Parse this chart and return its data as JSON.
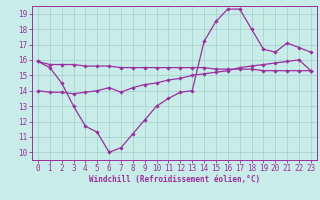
{
  "xlabel": "Windchill (Refroidissement éolien,°C)",
  "x": [
    0,
    1,
    2,
    3,
    4,
    5,
    6,
    7,
    8,
    9,
    10,
    11,
    12,
    13,
    14,
    15,
    16,
    17,
    18,
    19,
    20,
    21,
    22,
    23
  ],
  "line1": [
    15.9,
    15.7,
    15.7,
    15.7,
    15.6,
    15.6,
    15.6,
    15.5,
    15.5,
    15.5,
    15.5,
    15.5,
    15.5,
    15.5,
    15.5,
    15.4,
    15.4,
    15.4,
    15.4,
    15.3,
    15.3,
    15.3,
    15.3,
    15.3
  ],
  "line2": [
    14.0,
    13.9,
    13.9,
    13.8,
    13.9,
    14.0,
    14.2,
    13.9,
    14.2,
    14.4,
    14.5,
    14.7,
    14.8,
    15.0,
    15.1,
    15.2,
    15.3,
    15.5,
    15.6,
    15.7,
    15.8,
    15.9,
    16.0,
    15.3
  ],
  "line3": [
    15.9,
    15.5,
    14.5,
    13.0,
    11.7,
    11.3,
    10.0,
    10.3,
    11.2,
    12.1,
    13.0,
    13.5,
    13.9,
    14.0,
    17.2,
    18.5,
    19.3,
    19.3,
    18.0,
    16.7,
    16.5,
    17.1,
    16.8,
    16.5
  ],
  "color": "#9b30a0",
  "bg_color": "#c8ece8",
  "grid_color": "#a8d4d0",
  "xlim": [
    -0.5,
    23.5
  ],
  "ylim": [
    9.5,
    19.5
  ],
  "xticks": [
    0,
    1,
    2,
    3,
    4,
    5,
    6,
    7,
    8,
    9,
    10,
    11,
    12,
    13,
    14,
    15,
    16,
    17,
    18,
    19,
    20,
    21,
    22,
    23
  ],
  "yticks": [
    10,
    11,
    12,
    13,
    14,
    15,
    16,
    17,
    18,
    19
  ],
  "tick_fontsize": 5.5,
  "xlabel_fontsize": 5.5,
  "linewidth": 0.9,
  "markersize": 2.2
}
